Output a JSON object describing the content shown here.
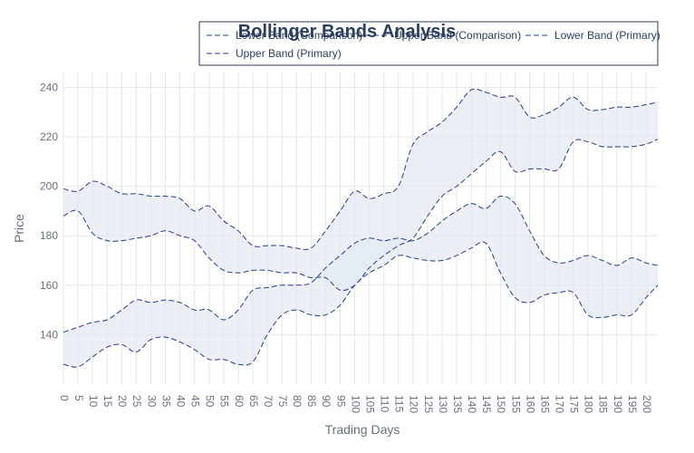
{
  "chart_data": {
    "type": "area",
    "title": "Bollinger Bands Analysis",
    "xlabel": "Trading Days",
    "ylabel": "Price",
    "xlim": [
      0,
      204
    ],
    "ylim": [
      120,
      246
    ],
    "grid": true,
    "legend_position": "top-right",
    "x_ticks": [
      0,
      5,
      10,
      15,
      20,
      25,
      30,
      35,
      40,
      45,
      50,
      55,
      60,
      65,
      70,
      75,
      80,
      85,
      90,
      95,
      100,
      105,
      110,
      115,
      120,
      125,
      130,
      135,
      140,
      145,
      150,
      155,
      160,
      165,
      170,
      175,
      180,
      185,
      190,
      195,
      200
    ],
    "y_ticks": [
      140,
      160,
      180,
      200,
      220,
      240
    ],
    "fill_color": "#e4e9f2",
    "line_color": "#1f3f8f",
    "x": [
      0,
      5,
      10,
      15,
      20,
      25,
      30,
      35,
      40,
      45,
      50,
      55,
      60,
      65,
      70,
      75,
      80,
      85,
      90,
      95,
      100,
      105,
      110,
      115,
      120,
      125,
      130,
      135,
      140,
      145,
      150,
      155,
      160,
      165,
      170,
      175,
      180,
      185,
      190,
      195,
      200,
      204
    ],
    "series": [
      {
        "name": "Lower Band (Comparison)",
        "values": [
          128,
          127,
          131,
          135,
          136,
          133,
          138,
          139,
          137,
          134,
          130,
          130,
          128,
          129,
          140,
          148,
          150,
          148,
          148,
          152,
          160,
          165,
          168,
          172,
          171,
          170,
          170,
          172,
          175,
          177,
          165,
          155,
          153,
          156,
          157,
          157,
          148,
          147,
          148,
          148,
          155,
          160
        ]
      },
      {
        "name": "Upper Band (Comparison)",
        "values": [
          141,
          143,
          145,
          146,
          150,
          154,
          153,
          154,
          153,
          150,
          150,
          146,
          150,
          158,
          159,
          160,
          160,
          161,
          167,
          172,
          177,
          179,
          178,
          179,
          178,
          181,
          186,
          190,
          193,
          191,
          196,
          193,
          182,
          172,
          169,
          170,
          172,
          170,
          168,
          171,
          169,
          168
        ]
      },
      {
        "name": "Lower Band (Primary)",
        "values": [
          188,
          190,
          181,
          178,
          178,
          179,
          180,
          182,
          180,
          178,
          171,
          166,
          165,
          166,
          166,
          165,
          165,
          163,
          163,
          158,
          160,
          167,
          172,
          176,
          179,
          188,
          196,
          200,
          205,
          210,
          214,
          206,
          207,
          207,
          207,
          218,
          218,
          216,
          216,
          216,
          217,
          219
        ]
      },
      {
        "name": "Upper Band (Primary)",
        "values": [
          199,
          198,
          202,
          200,
          197,
          197,
          196,
          196,
          195,
          190,
          192,
          186,
          182,
          176,
          176,
          176,
          175,
          175,
          182,
          190,
          198,
          195,
          197,
          200,
          217,
          222,
          226,
          232,
          239,
          238,
          236,
          236,
          228,
          229,
          232,
          236,
          231,
          231,
          232,
          232,
          233,
          234
        ]
      }
    ]
  }
}
